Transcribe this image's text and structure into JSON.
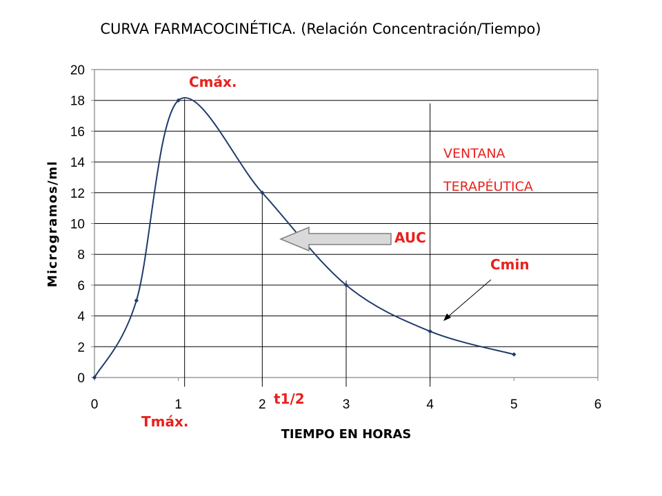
{
  "chart_data": {
    "type": "line",
    "title": "CURVA FARMACOCINÉTICA. (Relación Concentración/Tiempo)",
    "xlabel": "TIEMPO EN HORAS",
    "ylabel": "Microgramos/ml",
    "xlim": [
      0,
      6
    ],
    "ylim": [
      0,
      20
    ],
    "x_ticks": [
      "0",
      "1",
      "2",
      "3",
      "4",
      "5",
      "6"
    ],
    "y_ticks": [
      "0",
      "2",
      "4",
      "6",
      "8",
      "10",
      "12",
      "14",
      "16",
      "18",
      "20"
    ],
    "grid": "horizontal",
    "series": [
      {
        "x": [
          0,
          0.5,
          1,
          2,
          3,
          4,
          5
        ],
        "y": [
          0,
          5,
          18,
          12,
          6,
          3,
          1.5
        ]
      }
    ],
    "annotations": {
      "cmax": "Cmáx.",
      "tmax": "Tmáx.",
      "t_half": "t1/2",
      "auc": "AUC",
      "cmin": "Cmin",
      "ventana_line1": "VENTANA",
      "ventana_line2": "TERAPÉUTICA"
    },
    "colors": {
      "line": "#1f3a6b",
      "annotation": "#e8211d",
      "grid": "#000000",
      "arrow_fill": "#d9d9d9",
      "arrow_stroke": "#7f7f7f"
    }
  }
}
